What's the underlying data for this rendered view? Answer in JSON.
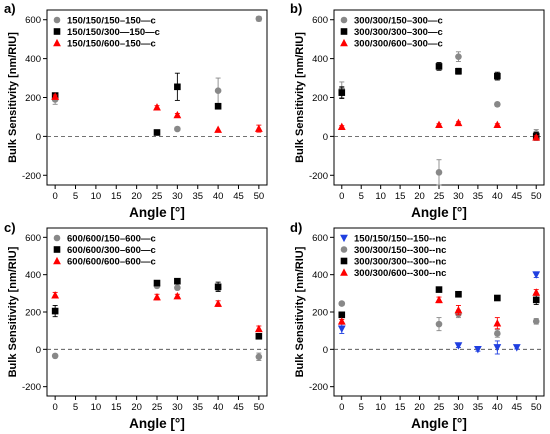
{
  "chart_data": [
    {
      "type": "scatter",
      "panel_label": "a)",
      "xlabel": "Angle [°]",
      "ylabel": "Bulk Sensitivity [nm/RIU]",
      "xlim": [
        -2,
        52
      ],
      "ylim": [
        -250,
        650
      ],
      "xticks": [
        0,
        5,
        10,
        15,
        20,
        25,
        30,
        35,
        40,
        45,
        50
      ],
      "yticks": [
        -200,
        0,
        200,
        400,
        600
      ],
      "legend_position": "top-left",
      "series": [
        {
          "name": "150/150/150–150—c",
          "color": "#888888",
          "marker": "circle",
          "points": [
            {
              "x": 0,
              "y": 190,
              "err": 25
            },
            {
              "x": 30,
              "y": 38,
              "err": 0
            },
            {
              "x": 40,
              "y": 235,
              "err": 65
            },
            {
              "x": 50,
              "y": 605,
              "err": 12
            }
          ]
        },
        {
          "name": "150/150/300—150—c",
          "color": "#000000",
          "marker": "square",
          "points": [
            {
              "x": 0,
              "y": 210,
              "err": 12
            },
            {
              "x": 25,
              "y": 20,
              "err": 0
            },
            {
              "x": 30,
              "y": 255,
              "err": 70
            },
            {
              "x": 40,
              "y": 155,
              "err": 10
            }
          ]
        },
        {
          "name": "150/150/600–150—c",
          "color": "#ff0000",
          "marker": "triangle-up",
          "points": [
            {
              "x": 0,
              "y": 205,
              "err": 8
            },
            {
              "x": 25,
              "y": 150,
              "err": 8
            },
            {
              "x": 30,
              "y": 110,
              "err": 8
            },
            {
              "x": 40,
              "y": 35,
              "err": 0
            },
            {
              "x": 50,
              "y": 40,
              "err": 18
            }
          ]
        }
      ]
    },
    {
      "type": "scatter",
      "panel_label": "b)",
      "xlabel": "Angle [°]",
      "ylabel": "Bulk Sensitivity [nm/RIU]",
      "xlim": [
        -2,
        52
      ],
      "ylim": [
        -250,
        650
      ],
      "xticks": [
        0,
        5,
        10,
        15,
        20,
        25,
        30,
        35,
        40,
        45,
        50
      ],
      "yticks": [
        -200,
        0,
        200,
        400,
        600
      ],
      "legend_position": "top-left",
      "series": [
        {
          "name": "300/300/150–300—c",
          "color": "#888888",
          "marker": "circle",
          "points": [
            {
              "x": 0,
              "y": 240,
              "err": 40
            },
            {
              "x": 25,
              "y": -185,
              "err": 65
            },
            {
              "x": 30,
              "y": 410,
              "err": 25
            },
            {
              "x": 40,
              "y": 165,
              "err": 10
            },
            {
              "x": 50,
              "y": 15,
              "err": 20
            }
          ]
        },
        {
          "name": "300/300/300–300—c",
          "color": "#000000",
          "marker": "square",
          "points": [
            {
              "x": 0,
              "y": 225,
              "err": 30
            },
            {
              "x": 25,
              "y": 360,
              "err": 20
            },
            {
              "x": 30,
              "y": 335,
              "err": 15
            },
            {
              "x": 40,
              "y": 310,
              "err": 20
            },
            {
              "x": 50,
              "y": 0,
              "err": 20
            }
          ]
        },
        {
          "name": "300/300/600–300—c",
          "color": "#ff0000",
          "marker": "triangle-up",
          "points": [
            {
              "x": 0,
              "y": 50,
              "err": 5
            },
            {
              "x": 25,
              "y": 60,
              "err": 5
            },
            {
              "x": 30,
              "y": 70,
              "err": 5
            },
            {
              "x": 40,
              "y": 60,
              "err": 5
            },
            {
              "x": 50,
              "y": -5,
              "err": 8
            }
          ]
        }
      ]
    },
    {
      "type": "scatter",
      "panel_label": "c)",
      "xlabel": "Angle [°]",
      "ylabel": "Bulk Sensitivity [nm/RIU]",
      "xlim": [
        -2,
        52
      ],
      "ylim": [
        -250,
        650
      ],
      "xticks": [
        0,
        5,
        10,
        15,
        20,
        25,
        30,
        35,
        40,
        45,
        50
      ],
      "yticks": [
        -200,
        0,
        200,
        400,
        600
      ],
      "legend_position": "top-left",
      "series": [
        {
          "name": "600/600/150–600—c",
          "color": "#888888",
          "marker": "circle",
          "points": [
            {
              "x": 0,
              "y": -35,
              "err": 0
            },
            {
              "x": 25,
              "y": 340,
              "err": 10
            },
            {
              "x": 30,
              "y": 330,
              "err": 10
            },
            {
              "x": 40,
              "y": 330,
              "err": 15
            },
            {
              "x": 50,
              "y": -40,
              "err": 20
            }
          ]
        },
        {
          "name": "600/600/300–600—c",
          "color": "#000000",
          "marker": "square",
          "points": [
            {
              "x": 0,
              "y": 205,
              "err": 30
            },
            {
              "x": 25,
              "y": 355,
              "err": 12
            },
            {
              "x": 30,
              "y": 365,
              "err": 10
            },
            {
              "x": 40,
              "y": 335,
              "err": 25
            },
            {
              "x": 50,
              "y": 70,
              "err": 12
            }
          ]
        },
        {
          "name": "600/600/600–600—c",
          "color": "#ff0000",
          "marker": "triangle-up",
          "points": [
            {
              "x": 0,
              "y": 290,
              "err": 15
            },
            {
              "x": 25,
              "y": 280,
              "err": 15
            },
            {
              "x": 30,
              "y": 285,
              "err": 10
            },
            {
              "x": 40,
              "y": 245,
              "err": 15
            },
            {
              "x": 50,
              "y": 110,
              "err": 15
            }
          ]
        }
      ]
    },
    {
      "type": "scatter",
      "panel_label": "d)",
      "xlabel": "Angle [°]",
      "ylabel": "Bulk Sensitivity [nm/RIU]",
      "xlim": [
        -2,
        52
      ],
      "ylim": [
        -250,
        650
      ],
      "xticks": [
        0,
        5,
        10,
        15,
        20,
        25,
        30,
        35,
        40,
        45,
        50
      ],
      "yticks": [
        -200,
        0,
        200,
        400,
        600
      ],
      "legend_position": "top-left",
      "series": [
        {
          "name": "150/150/150--150--nc",
          "color": "#1f3fe0",
          "marker": "triangle-down",
          "points": [
            {
              "x": 0,
              "y": 110,
              "err": 25
            },
            {
              "x": 30,
              "y": 20,
              "err": 10
            },
            {
              "x": 35,
              "y": 0,
              "err": 10
            },
            {
              "x": 40,
              "y": 10,
              "err": 35
            },
            {
              "x": 45,
              "y": 10,
              "err": 8
            },
            {
              "x": 50,
              "y": 400,
              "err": 15
            }
          ]
        },
        {
          "name": "300/300/150--300--nc",
          "color": "#888888",
          "marker": "circle",
          "points": [
            {
              "x": 0,
              "y": 245,
              "err": 10
            },
            {
              "x": 25,
              "y": 135,
              "err": 35
            },
            {
              "x": 30,
              "y": 190,
              "err": 20
            },
            {
              "x": 40,
              "y": 85,
              "err": 20
            },
            {
              "x": 50,
              "y": 150,
              "err": 15
            }
          ]
        },
        {
          "name": "300/300/300--300--nc",
          "color": "#000000",
          "marker": "square",
          "points": [
            {
              "x": 0,
              "y": 185,
              "err": 15
            },
            {
              "x": 25,
              "y": 320,
              "err": 10
            },
            {
              "x": 30,
              "y": 295,
              "err": 10
            },
            {
              "x": 40,
              "y": 275,
              "err": 10
            },
            {
              "x": 50,
              "y": 265,
              "err": 25
            }
          ]
        },
        {
          "name": "300/300/600--300--nc",
          "color": "#ff0000",
          "marker": "triangle-up",
          "points": [
            {
              "x": 0,
              "y": 150,
              "err": 10
            },
            {
              "x": 25,
              "y": 265,
              "err": 15
            },
            {
              "x": 30,
              "y": 210,
              "err": 25
            },
            {
              "x": 40,
              "y": 140,
              "err": 30
            },
            {
              "x": 50,
              "y": 305,
              "err": 15
            }
          ]
        }
      ]
    }
  ]
}
